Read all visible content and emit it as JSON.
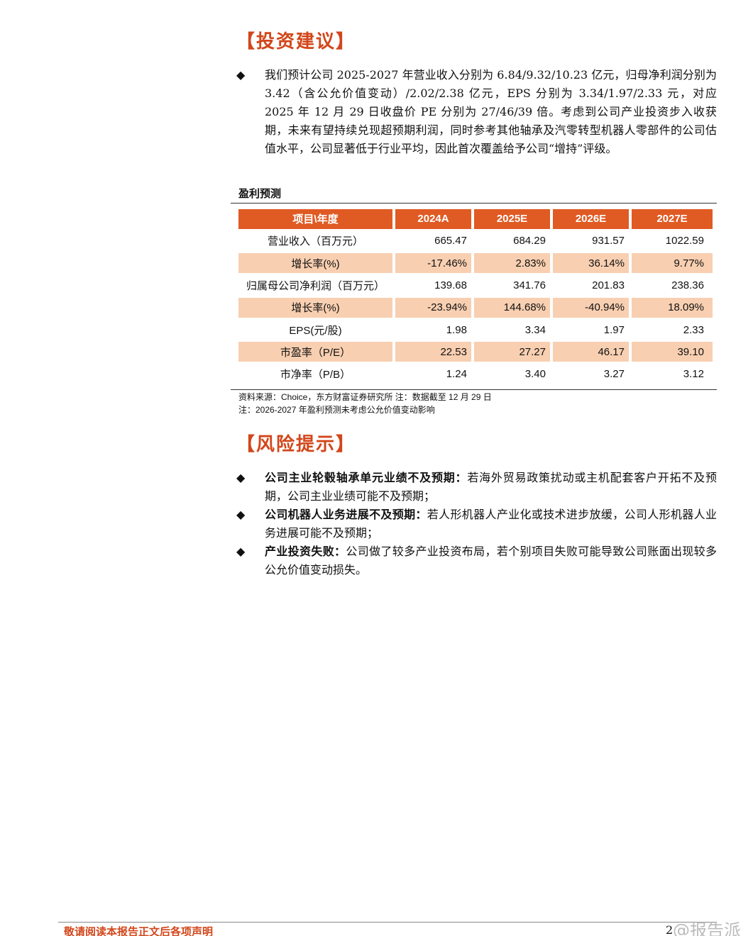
{
  "section1": {
    "title": "【投资建议】",
    "bullets": [
      {
        "text": "我们预计公司 2025-2027 年营业收入分别为 6.84/9.32/10.23 亿元，归母净利润分别为 3.42（含公允价值变动）/2.02/2.38 亿元，EPS 分别为 3.34/1.97/2.33 元，对应 2025 年 12 月 29 日收盘价 PE 分别为 27/46/39 倍。考虑到公司产业投资步入收获期，未来有望持续兑现超预期利润，同时参考其他轴承及汽零转型机器人零部件的公司估值水平，公司显著低于行业平均，因此首次覆盖给予公司“增持”评级。"
      }
    ]
  },
  "table": {
    "title": "盈利预测",
    "header": [
      "项目\\年度",
      "2024A",
      "2025E",
      "2026E",
      "2027E"
    ],
    "rows": [
      [
        "营业收入（百万元）",
        "665.47",
        "684.29",
        "931.57",
        "1022.59"
      ],
      [
        "增长率(%)",
        "-17.46%",
        "2.83%",
        "36.14%",
        "9.77%"
      ],
      [
        "归属母公司净利润（百万元）",
        "139.68",
        "341.76",
        "201.83",
        "238.36"
      ],
      [
        "增长率(%)",
        "-23.94%",
        "144.68%",
        "-40.94%",
        "18.09%"
      ],
      [
        "EPS(元/股)",
        "1.98",
        "3.34",
        "1.97",
        "2.33"
      ],
      [
        "市盈率（P/E）",
        "22.53",
        "27.27",
        "46.17",
        "39.10"
      ],
      [
        "市净率（P/B）",
        "1.24",
        "3.40",
        "3.27",
        "3.12"
      ]
    ],
    "notes": [
      "资料来源：Choice，东方财富证券研究所 注：数据截至 12 月 29 日",
      "注：2026-2027 年盈利预测未考虑公允价值变动影响"
    ]
  },
  "section2": {
    "title": "【风险提示】",
    "bullets": [
      {
        "lead": "公司主业轮毂轴承单元业绩不及预期：",
        "text": "若海外贸易政策扰动或主机配套客户开拓不及预期，公司主业业绩可能不及预期；"
      },
      {
        "lead": "公司机器人业务进展不及预期：",
        "text": "若人形机器人产业化或技术进步放缓，公司人形机器人业务进展可能不及预期；"
      },
      {
        "lead": "产业投资失败：",
        "text": "公司做了较多产业投资布局，若个别项目失败可能导致公司账面出现较多公允价值变动损失。"
      }
    ]
  },
  "footer": {
    "disclaimer": "敬请阅读本报告正文后各项声明",
    "page": "2",
    "watermark": "@报告派"
  }
}
